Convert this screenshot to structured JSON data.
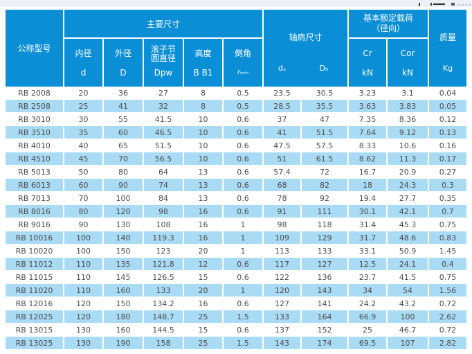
{
  "colors": {
    "header_bg": "#0a8ed6",
    "alt_row_bg": "#a9dbf5",
    "body_text": "#4c4c4c",
    "top_strip_bg": "#edf0f7"
  },
  "table": {
    "header": {
      "model": "公称型号",
      "main": "主要尺寸",
      "main_cols": [
        {
          "label": "内径",
          "symbol": "d"
        },
        {
          "label": "外径",
          "symbol": "D"
        },
        {
          "label": "滚子节\n圆直径",
          "symbol": "Dpw"
        },
        {
          "label": "高度",
          "symbol": "B B1"
        },
        {
          "label": "倒角",
          "symbol": "rₘᵢₙ"
        }
      ],
      "shoulder": "轴肩尺寸",
      "shoulder_symbols": [
        "dₛ",
        "Dₕ"
      ],
      "load_line1": "基本额定载荷",
      "load_line2": "（径向）",
      "load_cols": [
        {
          "label": "Cr",
          "symbol": "kN"
        },
        {
          "label": "Cor",
          "symbol": "kN"
        }
      ],
      "mass": "质量",
      "mass_unit": "Kg"
    },
    "rows": [
      [
        "RB 2008",
        "20",
        "36",
        "27",
        "8",
        "0.5",
        "23.5",
        "30.5",
        "3.23",
        "3.1",
        "0.04"
      ],
      [
        "RB 2508",
        "25",
        "41",
        "32",
        "8",
        "0.5",
        "28.5",
        "35.5",
        "3.63",
        "3.83",
        "0.05"
      ],
      [
        "RB 3010",
        "30",
        "55",
        "41.5",
        "10",
        "0.6",
        "37",
        "47",
        "7.35",
        "8.36",
        "0.12"
      ],
      [
        "RB 3510",
        "35",
        "60",
        "46.5",
        "10",
        "0.6",
        "41",
        "51.5",
        "7.64",
        "9.12",
        "0.13"
      ],
      [
        "RB 4010",
        "40",
        "65",
        "51.5",
        "10",
        "0.6",
        "47.5",
        "57.5",
        "8.33",
        "10.6",
        "0.16"
      ],
      [
        "RB 4510",
        "45",
        "70",
        "56.5",
        "10",
        "0.6",
        "51",
        "61.5",
        "8.62",
        "11.3",
        "0.17"
      ],
      [
        "RB 5013",
        "50",
        "80",
        "64",
        "13",
        "0.6",
        "57.4",
        "72",
        "16.7",
        "20.9",
        "0.27"
      ],
      [
        "RB 6013",
        "60",
        "90",
        "74",
        "13",
        "0.6",
        "68",
        "82",
        "18",
        "24.3",
        "0.3"
      ],
      [
        "RB 7013",
        "70",
        "100",
        "84",
        "13",
        "0.6",
        "78",
        "92",
        "19.4",
        "27.7",
        "0.35"
      ],
      [
        "RB 8016",
        "80",
        "120",
        "98",
        "16",
        "0.6",
        "91",
        "111",
        "30.1",
        "42.1",
        "0.7"
      ],
      [
        "RB 9016",
        "90",
        "130",
        "108",
        "16",
        "1",
        "98",
        "118",
        "31.4",
        "45.3",
        "0.75"
      ],
      [
        "RB 10016",
        "100",
        "140",
        "119.3",
        "16",
        "1",
        "109",
        "129",
        "31.7",
        "48.6",
        "0.83"
      ],
      [
        "RB 10020",
        "100",
        "150",
        "123",
        "20",
        "1",
        "113",
        "133",
        "33.1",
        "50.9",
        "1.45"
      ],
      [
        "RB 11012",
        "110",
        "135",
        "121.8",
        "12",
        "0.6",
        "117",
        "127",
        "12.5",
        "24.1",
        "0.4"
      ],
      [
        "RB 11015",
        "110",
        "145",
        "126.5",
        "15",
        "0.6",
        "122",
        "136",
        "23.7",
        "41.5",
        "0.75"
      ],
      [
        "RB 11020",
        "110",
        "160",
        "133",
        "20",
        "1",
        "120",
        "143",
        "34",
        "54",
        "1.56"
      ],
      [
        "RB 12016",
        "120",
        "150",
        "134.2",
        "16",
        "0.6",
        "127",
        "141",
        "24.2",
        "43.2",
        "0.72"
      ],
      [
        "RB 12025",
        "120",
        "180",
        "148.7",
        "25",
        "1.5",
        "133",
        "164",
        "66.9",
        "100",
        "2.62"
      ],
      [
        "RB 13015",
        "130",
        "160",
        "144.5",
        "15",
        "0.6",
        "137",
        "152",
        "25",
        "46.7",
        "0.72"
      ],
      [
        "RB 13025",
        "130",
        "190",
        "158",
        "25",
        "1.5",
        "143",
        "174",
        "69.5",
        "107",
        "2.82"
      ]
    ]
  }
}
